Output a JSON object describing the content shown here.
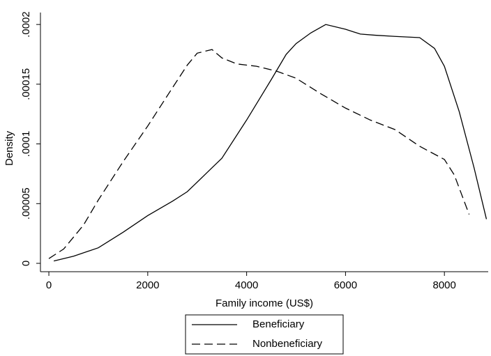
{
  "chart_data": {
    "type": "line",
    "x_label": "Family income (US$)",
    "y_label": "Density",
    "xlim": [
      -170,
      8886
    ],
    "ylim": [
      -7e-06,
      0.00021
    ],
    "xticks": [
      0,
      2000,
      4000,
      6000,
      8000
    ],
    "yticks": [
      0,
      {
        "value": 5e-05,
        "label": ".00005"
      },
      {
        "value": 0.0001,
        "label": ".0001"
      },
      {
        "value": 0.00015,
        "label": ".00015"
      },
      {
        "value": 0.0002,
        "label": ".0002"
      }
    ],
    "grid": false,
    "legend": "bottom",
    "series": [
      {
        "name": "Beneficiary",
        "color": "#000000",
        "line_style": "solid",
        "x": [
          100,
          500,
          1000,
          1500,
          2000,
          2500,
          2800,
          3200,
          3500,
          4000,
          4500,
          4800,
          5000,
          5300,
          5600,
          6000,
          6300,
          6600,
          7000,
          7500,
          7800,
          8000,
          8300,
          8600,
          8850
        ],
        "values": [
          2e-06,
          6e-06,
          1.3e-05,
          2.6e-05,
          4e-05,
          5.2e-05,
          6e-05,
          7.6e-05,
          8.8e-05,
          0.00012,
          0.000154,
          0.000175,
          0.000184,
          0.000193,
          0.0002,
          0.000196,
          0.000192,
          0.000191,
          0.00019,
          0.000189,
          0.00018,
          0.000165,
          0.000127,
          8e-05,
          3.7e-05
        ]
      },
      {
        "name": "Nonbeneficiary",
        "color": "#000000",
        "line_style": "dashed",
        "x": [
          0,
          300,
          700,
          1000,
          1500,
          2000,
          2500,
          2800,
          3000,
          3300,
          3500,
          3800,
          4200,
          4600,
          5000,
          5500,
          6000,
          6500,
          7000,
          7500,
          8000,
          8200,
          8500
        ],
        "values": [
          4e-06,
          1.2e-05,
          3.2e-05,
          5.3e-05,
          8.5e-05,
          0.000115,
          0.000147,
          0.000166,
          0.000176,
          0.000179,
          0.000172,
          0.000167,
          0.000165,
          0.000161,
          0.000155,
          0.000142,
          0.00013,
          0.00012,
          0.000112,
          9.8e-05,
          8.7e-05,
          7.4e-05,
          4.1e-05
        ]
      }
    ]
  }
}
